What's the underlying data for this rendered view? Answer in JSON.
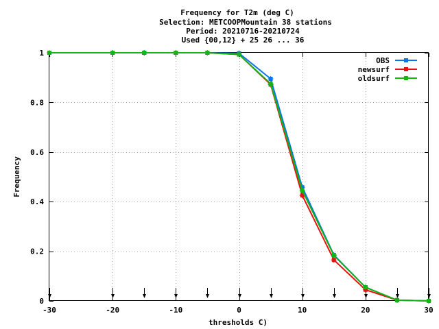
{
  "chart_data": {
    "type": "line",
    "title_lines": [
      "Frequency  for T2m (deg C)",
      "Selection: METCOOPMountain     38 stations",
      "Period: 20210716-20210724",
      "Used {00,12} + 25 26 ... 36"
    ],
    "xlabel": "thresholds C)",
    "ylabel": "Frequency",
    "xlim": [
      -30,
      30
    ],
    "ylim": [
      0,
      1
    ],
    "x_ticks": [
      -30,
      -20,
      -10,
      0,
      10,
      20,
      30
    ],
    "y_ticks": [
      0,
      0.2,
      0.4,
      0.6,
      0.8,
      1
    ],
    "y_tick_labels": [
      "0",
      "0.2",
      "0.4",
      "0.6",
      "0.8",
      "1"
    ],
    "grid": true,
    "legend_position": "top-right",
    "threshold_markers": [
      -30,
      -20,
      -15,
      -10,
      -5,
      0,
      5,
      10,
      15,
      20,
      25,
      30
    ],
    "x": [
      -30,
      -20,
      -15,
      -10,
      -5,
      0,
      5,
      10,
      15,
      20,
      25,
      30
    ],
    "series": [
      {
        "name": "OBS",
        "color": "#0a75e8",
        "values": [
          1.0,
          1.0,
          1.0,
          1.0,
          1.0,
          0.998,
          0.895,
          0.458,
          0.185,
          0.055,
          0.003,
          0.0
        ]
      },
      {
        "name": "newsurf",
        "color": "#e8120f",
        "values": [
          1.0,
          1.0,
          1.0,
          1.0,
          1.0,
          0.993,
          0.872,
          0.425,
          0.165,
          0.045,
          0.003,
          0.0
        ]
      },
      {
        "name": "oldsurf",
        "color": "#16b316",
        "values": [
          1.0,
          1.0,
          1.0,
          1.0,
          1.0,
          0.993,
          0.875,
          0.445,
          0.183,
          0.055,
          0.003,
          0.0
        ]
      }
    ]
  }
}
